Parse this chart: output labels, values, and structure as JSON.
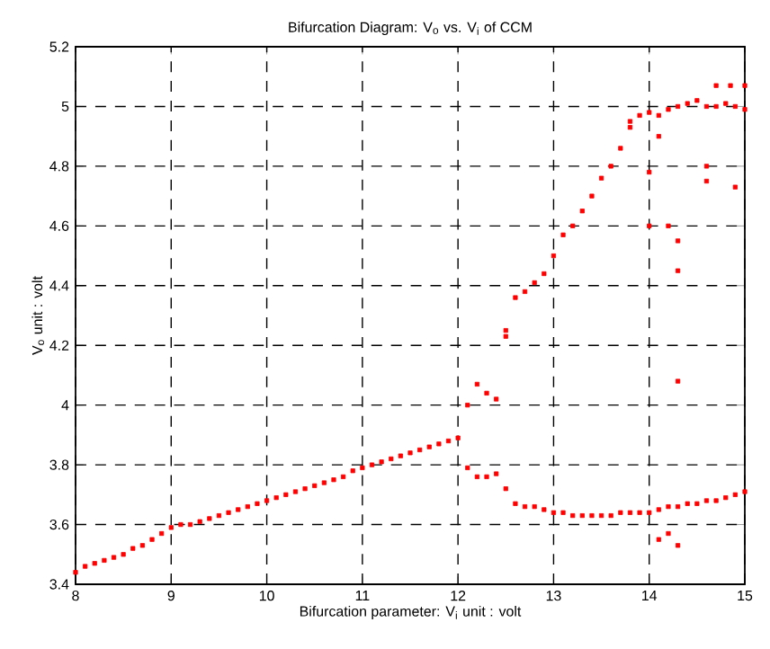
{
  "chart_data": {
    "type": "scatter",
    "title": "Bifurcation Diagram: V$_{o}$ vs. V$_{i}$  of  CCM",
    "xlabel": "Bifurcation parameter: V$_{i}$   unit : volt",
    "ylabel": "V$_{o}$   unit : volt",
    "xlim": [
      8,
      15
    ],
    "ylim": [
      3.4,
      5.2
    ],
    "xticks": [
      8,
      9,
      10,
      11,
      12,
      13,
      14,
      15
    ],
    "yticks": [
      3.4,
      3.6,
      3.8,
      4,
      4.2,
      4.4,
      4.6,
      4.8,
      5,
      5.2
    ],
    "grid": true,
    "marker": "square",
    "series": [
      {
        "color": "#ff0000",
        "x": [
          8.0,
          8.1,
          8.2,
          8.3,
          8.4,
          8.5,
          8.6,
          8.7,
          8.8,
          8.9,
          9.0,
          9.1,
          9.2,
          9.3,
          9.4,
          9.5,
          9.6,
          9.7,
          9.8,
          9.9,
          10.0,
          10.1,
          10.2,
          10.3,
          10.4,
          10.5,
          10.6,
          10.7,
          10.8,
          10.9,
          11.0,
          11.1,
          11.2,
          11.3,
          11.4,
          11.5,
          11.6,
          11.7,
          11.8,
          11.9,
          12.0,
          12.1,
          12.2,
          12.3,
          12.4,
          12.5,
          12.1,
          12.2,
          12.3,
          12.4,
          12.5,
          12.6,
          12.7,
          12.8,
          12.9,
          13.0,
          13.1,
          13.2,
          13.3,
          13.4,
          13.5,
          13.6,
          13.7,
          13.8,
          13.9,
          14.0,
          14.1,
          14.2,
          14.3,
          14.4,
          14.5,
          14.6,
          14.7,
          14.8,
          14.9,
          15.0,
          12.5,
          12.6,
          12.7,
          12.8,
          12.9,
          13.0,
          13.1,
          13.2,
          13.3,
          13.4,
          13.5,
          13.6,
          13.7,
          13.8,
          13.9,
          14.0,
          14.1,
          14.2,
          14.3,
          14.4,
          14.5,
          14.6,
          14.7,
          14.8,
          14.9,
          15.0,
          14.7,
          14.85,
          15.0,
          14.0,
          14.0,
          14.1,
          14.2,
          14.3,
          14.3,
          14.3,
          14.6,
          14.6,
          14.9,
          14.1,
          14.2,
          14.3,
          13.8
        ],
        "values": [
          3.44,
          3.46,
          3.47,
          3.48,
          3.49,
          3.5,
          3.52,
          3.53,
          3.55,
          3.57,
          3.59,
          3.6,
          3.6,
          3.61,
          3.62,
          3.63,
          3.64,
          3.65,
          3.66,
          3.67,
          3.68,
          3.69,
          3.7,
          3.71,
          3.72,
          3.73,
          3.74,
          3.75,
          3.76,
          3.78,
          3.79,
          3.8,
          3.81,
          3.82,
          3.83,
          3.84,
          3.85,
          3.86,
          3.87,
          3.88,
          3.89,
          4.0,
          4.07,
          4.04,
          4.02,
          4.23,
          3.79,
          3.76,
          3.76,
          3.77,
          3.72,
          3.67,
          3.66,
          3.66,
          3.65,
          3.64,
          3.64,
          3.63,
          3.63,
          3.63,
          3.63,
          3.63,
          3.64,
          3.64,
          3.64,
          3.64,
          3.65,
          3.66,
          3.66,
          3.67,
          3.67,
          3.68,
          3.68,
          3.69,
          3.7,
          3.71,
          4.25,
          4.36,
          4.38,
          4.41,
          4.44,
          4.5,
          4.57,
          4.6,
          4.65,
          4.7,
          4.76,
          4.8,
          4.86,
          4.93,
          4.97,
          4.98,
          4.97,
          4.99,
          5.0,
          5.01,
          5.02,
          5.0,
          5.0,
          5.01,
          5.0,
          4.99,
          5.07,
          5.07,
          5.07,
          4.78,
          4.6,
          4.9,
          4.6,
          4.55,
          4.45,
          4.08,
          4.8,
          4.75,
          4.73,
          3.55,
          3.57,
          3.53,
          4.95
        ]
      }
    ]
  }
}
